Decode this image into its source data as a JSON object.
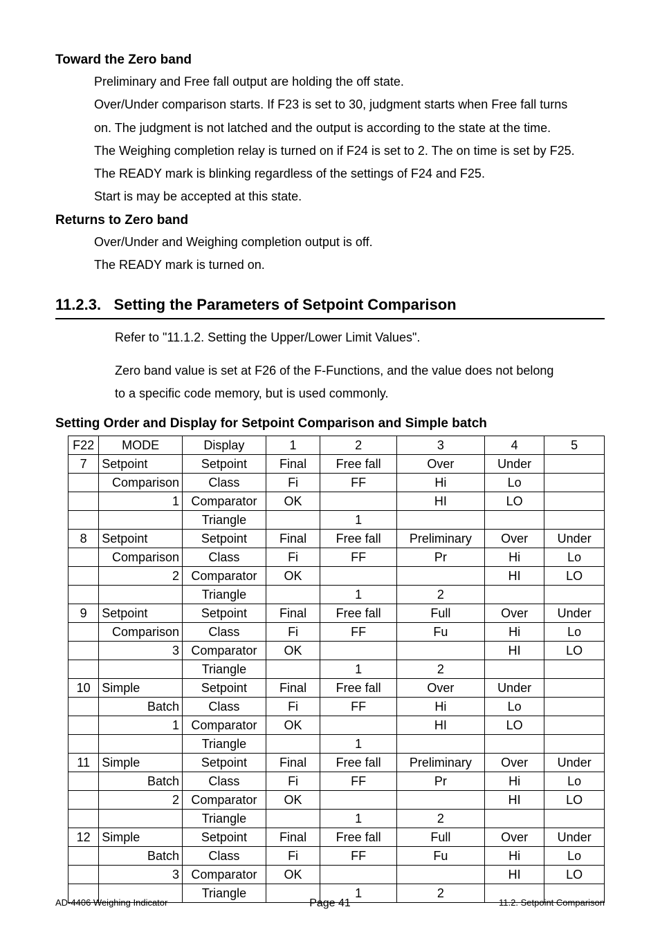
{
  "section1": {
    "heading": "Toward the Zero band",
    "lines": [
      "Preliminary and Free fall output are holding the off state.",
      "Over/Under comparison starts. If F23 is set to 30, judgment starts when Free fall turns",
      "on. The judgment is not latched and the output is according to the state at the time.",
      "The Weighing completion relay is turned on if F24 is set to 2. The on time is set by F25.",
      "The READY mark is blinking regardless of the settings of F24 and F25.",
      "Start is may be accepted at this state."
    ]
  },
  "section2": {
    "heading": "Returns to Zero band",
    "lines": [
      "Over/Under and Weighing completion output is off.",
      "The READY mark is turned on."
    ]
  },
  "h3": {
    "num": "11.2.3.",
    "title": "Setting the Parameters of Setpoint Comparison"
  },
  "sub": {
    "p1": "Refer to \"11.1.2. Setting the Upper/Lower Limit Values\".",
    "p2a": "Zero band value is set at F26 of the F-Functions, and the value does not belong",
    "p2b": "to a specific code memory, but is used commonly."
  },
  "table_title": "Setting Order and Display for Setpoint Comparison and Simple batch",
  "header": {
    "c0": "F22",
    "c1": "MODE",
    "c2": "Display",
    "c3": "1",
    "c4": "2",
    "c5": "3",
    "c6": "4",
    "c7": "5"
  },
  "groups": [
    {
      "f22": "7",
      "mode_lines": [
        "Setpoint",
        "Comparison",
        "1",
        ""
      ],
      "rows": [
        {
          "display": "Setpoint",
          "c1": "Final",
          "c2": "Free fall",
          "c3": "Over",
          "c4": "Under",
          "c5": ""
        },
        {
          "display": "Class",
          "c1": "Fi",
          "c2": "FF",
          "c3": "Hi",
          "c4": "Lo",
          "c5": ""
        },
        {
          "display": "Comparator",
          "c1": "OK",
          "c2": "",
          "c3": "HI",
          "c4": "LO",
          "c5": ""
        },
        {
          "display": "Triangle",
          "c1": "",
          "c2": "1",
          "c3": "",
          "c4": "",
          "c5": ""
        }
      ]
    },
    {
      "f22": "8",
      "mode_lines": [
        "Setpoint",
        "Comparison",
        "2",
        ""
      ],
      "rows": [
        {
          "display": "Setpoint",
          "c1": "Final",
          "c2": "Free fall",
          "c3": "Preliminary",
          "c4": "Over",
          "c5": "Under"
        },
        {
          "display": "Class",
          "c1": "Fi",
          "c2": "FF",
          "c3": "Pr",
          "c4": "Hi",
          "c5": "Lo"
        },
        {
          "display": "Comparator",
          "c1": "OK",
          "c2": "",
          "c3": "",
          "c4": "HI",
          "c5": "LO"
        },
        {
          "display": "Triangle",
          "c1": "",
          "c2": "1",
          "c3": "2",
          "c4": "",
          "c5": ""
        }
      ]
    },
    {
      "f22": "9",
      "mode_lines": [
        "Setpoint",
        "Comparison",
        "3",
        ""
      ],
      "rows": [
        {
          "display": "Setpoint",
          "c1": "Final",
          "c2": "Free fall",
          "c3": "Full",
          "c4": "Over",
          "c5": "Under"
        },
        {
          "display": "Class",
          "c1": "Fi",
          "c2": "FF",
          "c3": "Fu",
          "c4": "Hi",
          "c5": "Lo"
        },
        {
          "display": "Comparator",
          "c1": "OK",
          "c2": "",
          "c3": "",
          "c4": "HI",
          "c5": "LO"
        },
        {
          "display": "Triangle",
          "c1": "",
          "c2": "1",
          "c3": "2",
          "c4": "",
          "c5": ""
        }
      ]
    },
    {
      "f22": "10",
      "mode_lines": [
        "Simple",
        "Batch",
        "1",
        ""
      ],
      "rows": [
        {
          "display": "Setpoint",
          "c1": "Final",
          "c2": "Free fall",
          "c3": "Over",
          "c4": "Under",
          "c5": ""
        },
        {
          "display": "Class",
          "c1": "Fi",
          "c2": "FF",
          "c3": "Hi",
          "c4": "Lo",
          "c5": ""
        },
        {
          "display": "Comparator",
          "c1": "OK",
          "c2": "",
          "c3": "HI",
          "c4": "LO",
          "c5": ""
        },
        {
          "display": "Triangle",
          "c1": "",
          "c2": "1",
          "c3": "",
          "c4": "",
          "c5": ""
        }
      ]
    },
    {
      "f22": "11",
      "mode_lines": [
        "Simple",
        "Batch",
        "2",
        ""
      ],
      "rows": [
        {
          "display": "Setpoint",
          "c1": "Final",
          "c2": "Free fall",
          "c3": "Preliminary",
          "c4": "Over",
          "c5": "Under"
        },
        {
          "display": "Class",
          "c1": "Fi",
          "c2": "FF",
          "c3": "Pr",
          "c4": "Hi",
          "c5": "Lo"
        },
        {
          "display": "Comparator",
          "c1": "OK",
          "c2": "",
          "c3": "",
          "c4": "HI",
          "c5": "LO"
        },
        {
          "display": "Triangle",
          "c1": "",
          "c2": "1",
          "c3": "2",
          "c4": "",
          "c5": ""
        }
      ]
    },
    {
      "f22": "12",
      "mode_lines": [
        "Simple",
        "Batch",
        "3",
        ""
      ],
      "rows": [
        {
          "display": "Setpoint",
          "c1": "Final",
          "c2": "Free fall",
          "c3": "Full",
          "c4": "Over",
          "c5": "Under"
        },
        {
          "display": "Class",
          "c1": "Fi",
          "c2": "FF",
          "c3": "Fu",
          "c4": "Hi",
          "c5": "Lo"
        },
        {
          "display": "Comparator",
          "c1": "OK",
          "c2": "",
          "c3": "",
          "c4": "HI",
          "c5": "LO"
        },
        {
          "display": "Triangle",
          "c1": "",
          "c2": "1",
          "c3": "2",
          "c4": "",
          "c5": ""
        }
      ]
    }
  ],
  "footer": {
    "left": "AD-4406 Weighing Indicator",
    "center": "Page 41",
    "right": "11.2. Setpoint Comparison"
  }
}
